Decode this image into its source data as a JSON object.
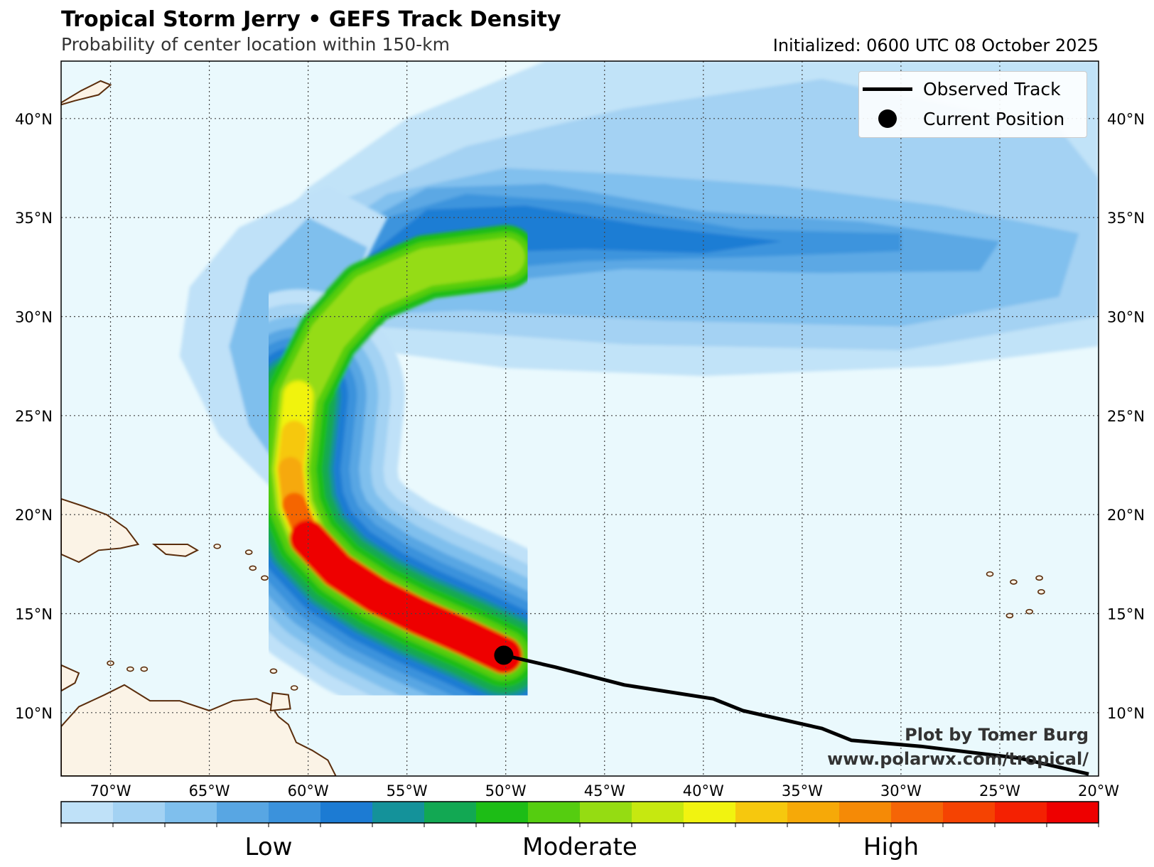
{
  "header": {
    "title": "Tropical Storm Jerry • GEFS Track Density",
    "subtitle": "Probability of center location within 150-km",
    "initialized": "Initialized: 0600 UTC 08 October 2025"
  },
  "legend": {
    "observed_label": "Observed Track",
    "current_label": "Current Position"
  },
  "credits": {
    "line1": "Plot by Tomer Burg",
    "line2": "www.polarwx.com/tropical/"
  },
  "map": {
    "lon_range": [
      -72.5,
      -20
    ],
    "lat_range": [
      6.8,
      42.9
    ],
    "lon_ticks": [
      -70,
      -65,
      -60,
      -55,
      -50,
      -45,
      -40,
      -35,
      -30,
      -25,
      -20
    ],
    "lon_tick_labels": [
      "70°W",
      "65°W",
      "60°W",
      "55°W",
      "50°W",
      "45°W",
      "40°W",
      "35°W",
      "30°W",
      "25°W",
      "20°W"
    ],
    "lat_ticks": [
      10,
      15,
      20,
      25,
      30,
      35,
      40
    ],
    "lat_tick_labels": [
      "10°N",
      "15°N",
      "20°N",
      "25°N",
      "30°N",
      "35°N",
      "40°N"
    ],
    "ocean_color": "#eaf9fd",
    "land_color": "#fbf3e6",
    "coast_color": "#5a2d0c",
    "observed_track": [
      [
        -50.1,
        12.9
      ],
      [
        -47.5,
        12.3
      ],
      [
        -44,
        11.4
      ],
      [
        -39.5,
        10.7
      ],
      [
        -38,
        10.1
      ],
      [
        -34,
        9.2
      ],
      [
        -32.5,
        8.6
      ],
      [
        -29,
        8.3
      ],
      [
        -24,
        7.7
      ],
      [
        -20.5,
        6.9
      ]
    ],
    "current_position": [
      -50.1,
      12.9
    ],
    "density_core": [
      [
        -50.1,
        12.9
      ],
      [
        -52,
        13.8
      ],
      [
        -54.5,
        14.9
      ],
      [
        -56.5,
        15.9
      ],
      [
        -58.5,
        17.2
      ],
      [
        -60,
        18.8
      ],
      [
        -60.7,
        20.5
      ],
      [
        -60.9,
        22.3
      ],
      [
        -60.7,
        24.1
      ],
      [
        -60.5,
        26
      ]
    ]
  },
  "colorbar": {
    "colors": [
      "#bfe1f8",
      "#a3d2f3",
      "#7fbfed",
      "#58a6e3",
      "#3b92dc",
      "#1c7bd3",
      "#14929a",
      "#12a853",
      "#1dbd16",
      "#55cd10",
      "#95dc12",
      "#c6e810",
      "#f1f310",
      "#f6c80e",
      "#f6a908",
      "#f58a06",
      "#f56506",
      "#f54302",
      "#f42102",
      "#ee0000"
    ],
    "labels": [
      "Low",
      "Moderate",
      "High"
    ],
    "label_positions": [
      0.2,
      0.5,
      0.8
    ]
  }
}
